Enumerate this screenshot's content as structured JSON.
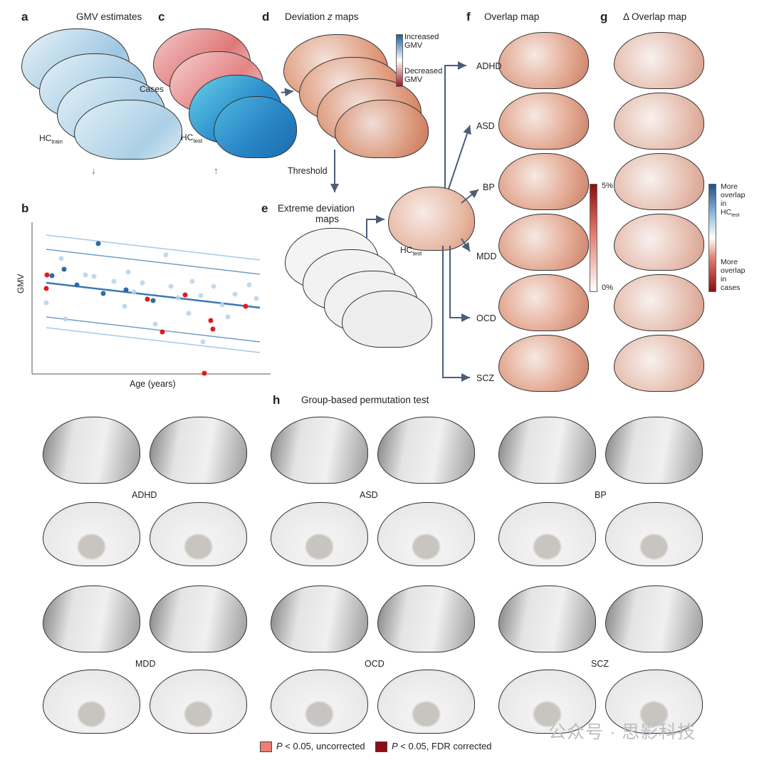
{
  "panels": {
    "a": {
      "label": "a",
      "title": "GMV estimates",
      "hc_train": "HC",
      "hc_train_sub": "train"
    },
    "c": {
      "label": "c",
      "cases": "Cases",
      "hc_test": "HC",
      "hc_test_sub": "test"
    },
    "d": {
      "label": "d",
      "title_pre": "Deviation ",
      "title_z": "z",
      "title_post": " maps",
      "legend_top": "Increased GMV",
      "legend_bottom": "Decreased GMV",
      "threshold": "Threshold"
    },
    "e": {
      "label": "e",
      "title_line1": "Extreme deviation",
      "title_line2": "maps",
      "hc_test": "HC",
      "hc_test_sub": "test"
    },
    "f": {
      "label": "f",
      "title": "Overlap map",
      "disorders": [
        "ADHD",
        "ASD",
        "BP",
        "MDD",
        "OCD",
        "SCZ"
      ],
      "scale_max": "5%",
      "scale_min": "0%"
    },
    "g": {
      "label": "g",
      "title": "Δ Overlap map",
      "legend_top_lines": [
        "More",
        "overlap",
        "in"
      ],
      "legend_top_hc": "HC",
      "legend_top_hc_sub": "test",
      "legend_bottom_lines": [
        "More",
        "overlap",
        "in",
        "cases"
      ]
    },
    "b": {
      "label": "b",
      "ylabel": "GMV",
      "xlabel": "Age (years)"
    },
    "h": {
      "label": "h",
      "title": "Group-based permutation test",
      "groups": [
        "ADHD",
        "ASD",
        "BP",
        "MDD",
        "OCD",
        "SCZ"
      ],
      "legend_uncorrected_p": "P",
      "legend_uncorrected_rest": " < 0.05, uncorrected",
      "legend_fdr_p": "P",
      "legend_fdr_rest": " < 0.05, FDR corrected"
    }
  },
  "watermark": "公众号 · 思影科技",
  "colors": {
    "blue": "#3a78b5",
    "light_blue": "#b8d3ea",
    "red": "#e11b1b",
    "dark_red": "#8b0d14",
    "salmon": "#ec7f72",
    "brain_grey": "#e2e2e2",
    "brain_dark": "#8a8a8a"
  }
}
